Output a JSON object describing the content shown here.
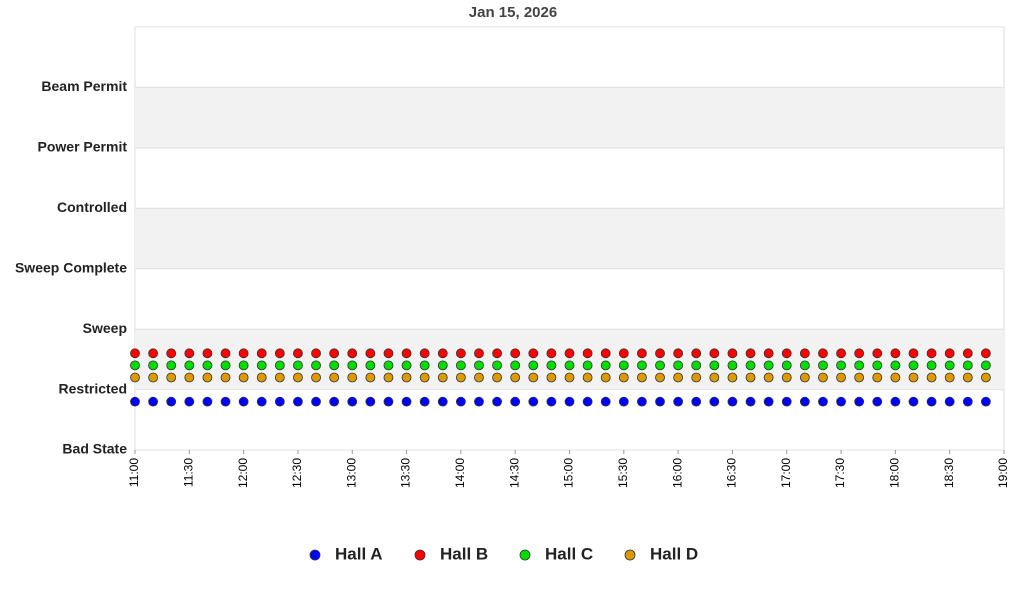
{
  "chart_data": {
    "type": "scatter",
    "title": "Jan 15, 2026",
    "x": [
      "11:00",
      "11:10",
      "11:20",
      "11:30",
      "11:40",
      "11:50",
      "12:00",
      "12:10",
      "12:20",
      "12:30",
      "12:40",
      "12:50",
      "13:00",
      "13:10",
      "13:20",
      "13:30",
      "13:40",
      "13:50",
      "14:00",
      "14:10",
      "14:20",
      "14:30",
      "14:40",
      "14:50",
      "15:00",
      "15:10",
      "15:20",
      "15:30",
      "15:40",
      "15:50",
      "16:00",
      "16:10",
      "16:20",
      "16:30",
      "16:40",
      "16:50",
      "17:00",
      "17:10",
      "17:20",
      "17:30",
      "17:40",
      "17:50",
      "18:00",
      "18:10",
      "18:20",
      "18:30",
      "18:40",
      "18:50"
    ],
    "series": [
      {
        "name": "Hall A",
        "color": "#0000ff",
        "values": [
          0.8,
          0.8,
          0.8,
          0.8,
          0.8,
          0.8,
          0.8,
          0.8,
          0.8,
          0.8,
          0.8,
          0.8,
          0.8,
          0.8,
          0.8,
          0.8,
          0.8,
          0.8,
          0.8,
          0.8,
          0.8,
          0.8,
          0.8,
          0.8,
          0.8,
          0.8,
          0.8,
          0.8,
          0.8,
          0.8,
          0.8,
          0.8,
          0.8,
          0.8,
          0.8,
          0.8,
          0.8,
          0.8,
          0.8,
          0.8,
          0.8,
          0.8,
          0.8,
          0.8,
          0.8,
          0.8,
          0.8,
          0.8
        ]
      },
      {
        "name": "Hall B",
        "color": "#ff0000",
        "values": [
          1.6,
          1.6,
          1.6,
          1.6,
          1.6,
          1.6,
          1.6,
          1.6,
          1.6,
          1.6,
          1.6,
          1.6,
          1.6,
          1.6,
          1.6,
          1.6,
          1.6,
          1.6,
          1.6,
          1.6,
          1.6,
          1.6,
          1.6,
          1.6,
          1.6,
          1.6,
          1.6,
          1.6,
          1.6,
          1.6,
          1.6,
          1.6,
          1.6,
          1.6,
          1.6,
          1.6,
          1.6,
          1.6,
          1.6,
          1.6,
          1.6,
          1.6,
          1.6,
          1.6,
          1.6,
          1.6,
          1.6,
          1.6
        ]
      },
      {
        "name": "Hall C",
        "color": "#00dd00",
        "values": [
          1.4,
          1.4,
          1.4,
          1.4,
          1.4,
          1.4,
          1.4,
          1.4,
          1.4,
          1.4,
          1.4,
          1.4,
          1.4,
          1.4,
          1.4,
          1.4,
          1.4,
          1.4,
          1.4,
          1.4,
          1.4,
          1.4,
          1.4,
          1.4,
          1.4,
          1.4,
          1.4,
          1.4,
          1.4,
          1.4,
          1.4,
          1.4,
          1.4,
          1.4,
          1.4,
          1.4,
          1.4,
          1.4,
          1.4,
          1.4,
          1.4,
          1.4,
          1.4,
          1.4,
          1.4,
          1.4,
          1.4,
          1.4
        ]
      },
      {
        "name": "Hall D",
        "color": "#dd9900",
        "values": [
          1.2,
          1.2,
          1.2,
          1.2,
          1.2,
          1.2,
          1.2,
          1.2,
          1.2,
          1.2,
          1.2,
          1.2,
          1.2,
          1.2,
          1.2,
          1.2,
          1.2,
          1.2,
          1.2,
          1.2,
          1.2,
          1.2,
          1.2,
          1.2,
          1.2,
          1.2,
          1.2,
          1.2,
          1.2,
          1.2,
          1.2,
          1.2,
          1.2,
          1.2,
          1.2,
          1.2,
          1.2,
          1.2,
          1.2,
          1.2,
          1.2,
          1.2,
          1.2,
          1.2,
          1.2,
          1.2,
          1.2,
          1.2
        ]
      }
    ],
    "xlim": [
      "11:00",
      "19:00"
    ],
    "xticks": [
      "11:00",
      "11:30",
      "12:00",
      "12:30",
      "13:00",
      "13:30",
      "14:00",
      "14:30",
      "15:00",
      "15:30",
      "16:00",
      "16:30",
      "17:00",
      "17:30",
      "18:00",
      "18:30",
      "19:00"
    ],
    "ylim": [
      0,
      7
    ],
    "yticks": [
      {
        "value": 0,
        "label": "Bad State"
      },
      {
        "value": 1,
        "label": "Restricted"
      },
      {
        "value": 2,
        "label": "Sweep"
      },
      {
        "value": 3,
        "label": "Sweep Complete"
      },
      {
        "value": 4,
        "label": "Controlled"
      },
      {
        "value": 5,
        "label": "Power Permit"
      },
      {
        "value": 6,
        "label": "Beam Permit"
      }
    ],
    "grid": true,
    "legend": "bottom"
  }
}
